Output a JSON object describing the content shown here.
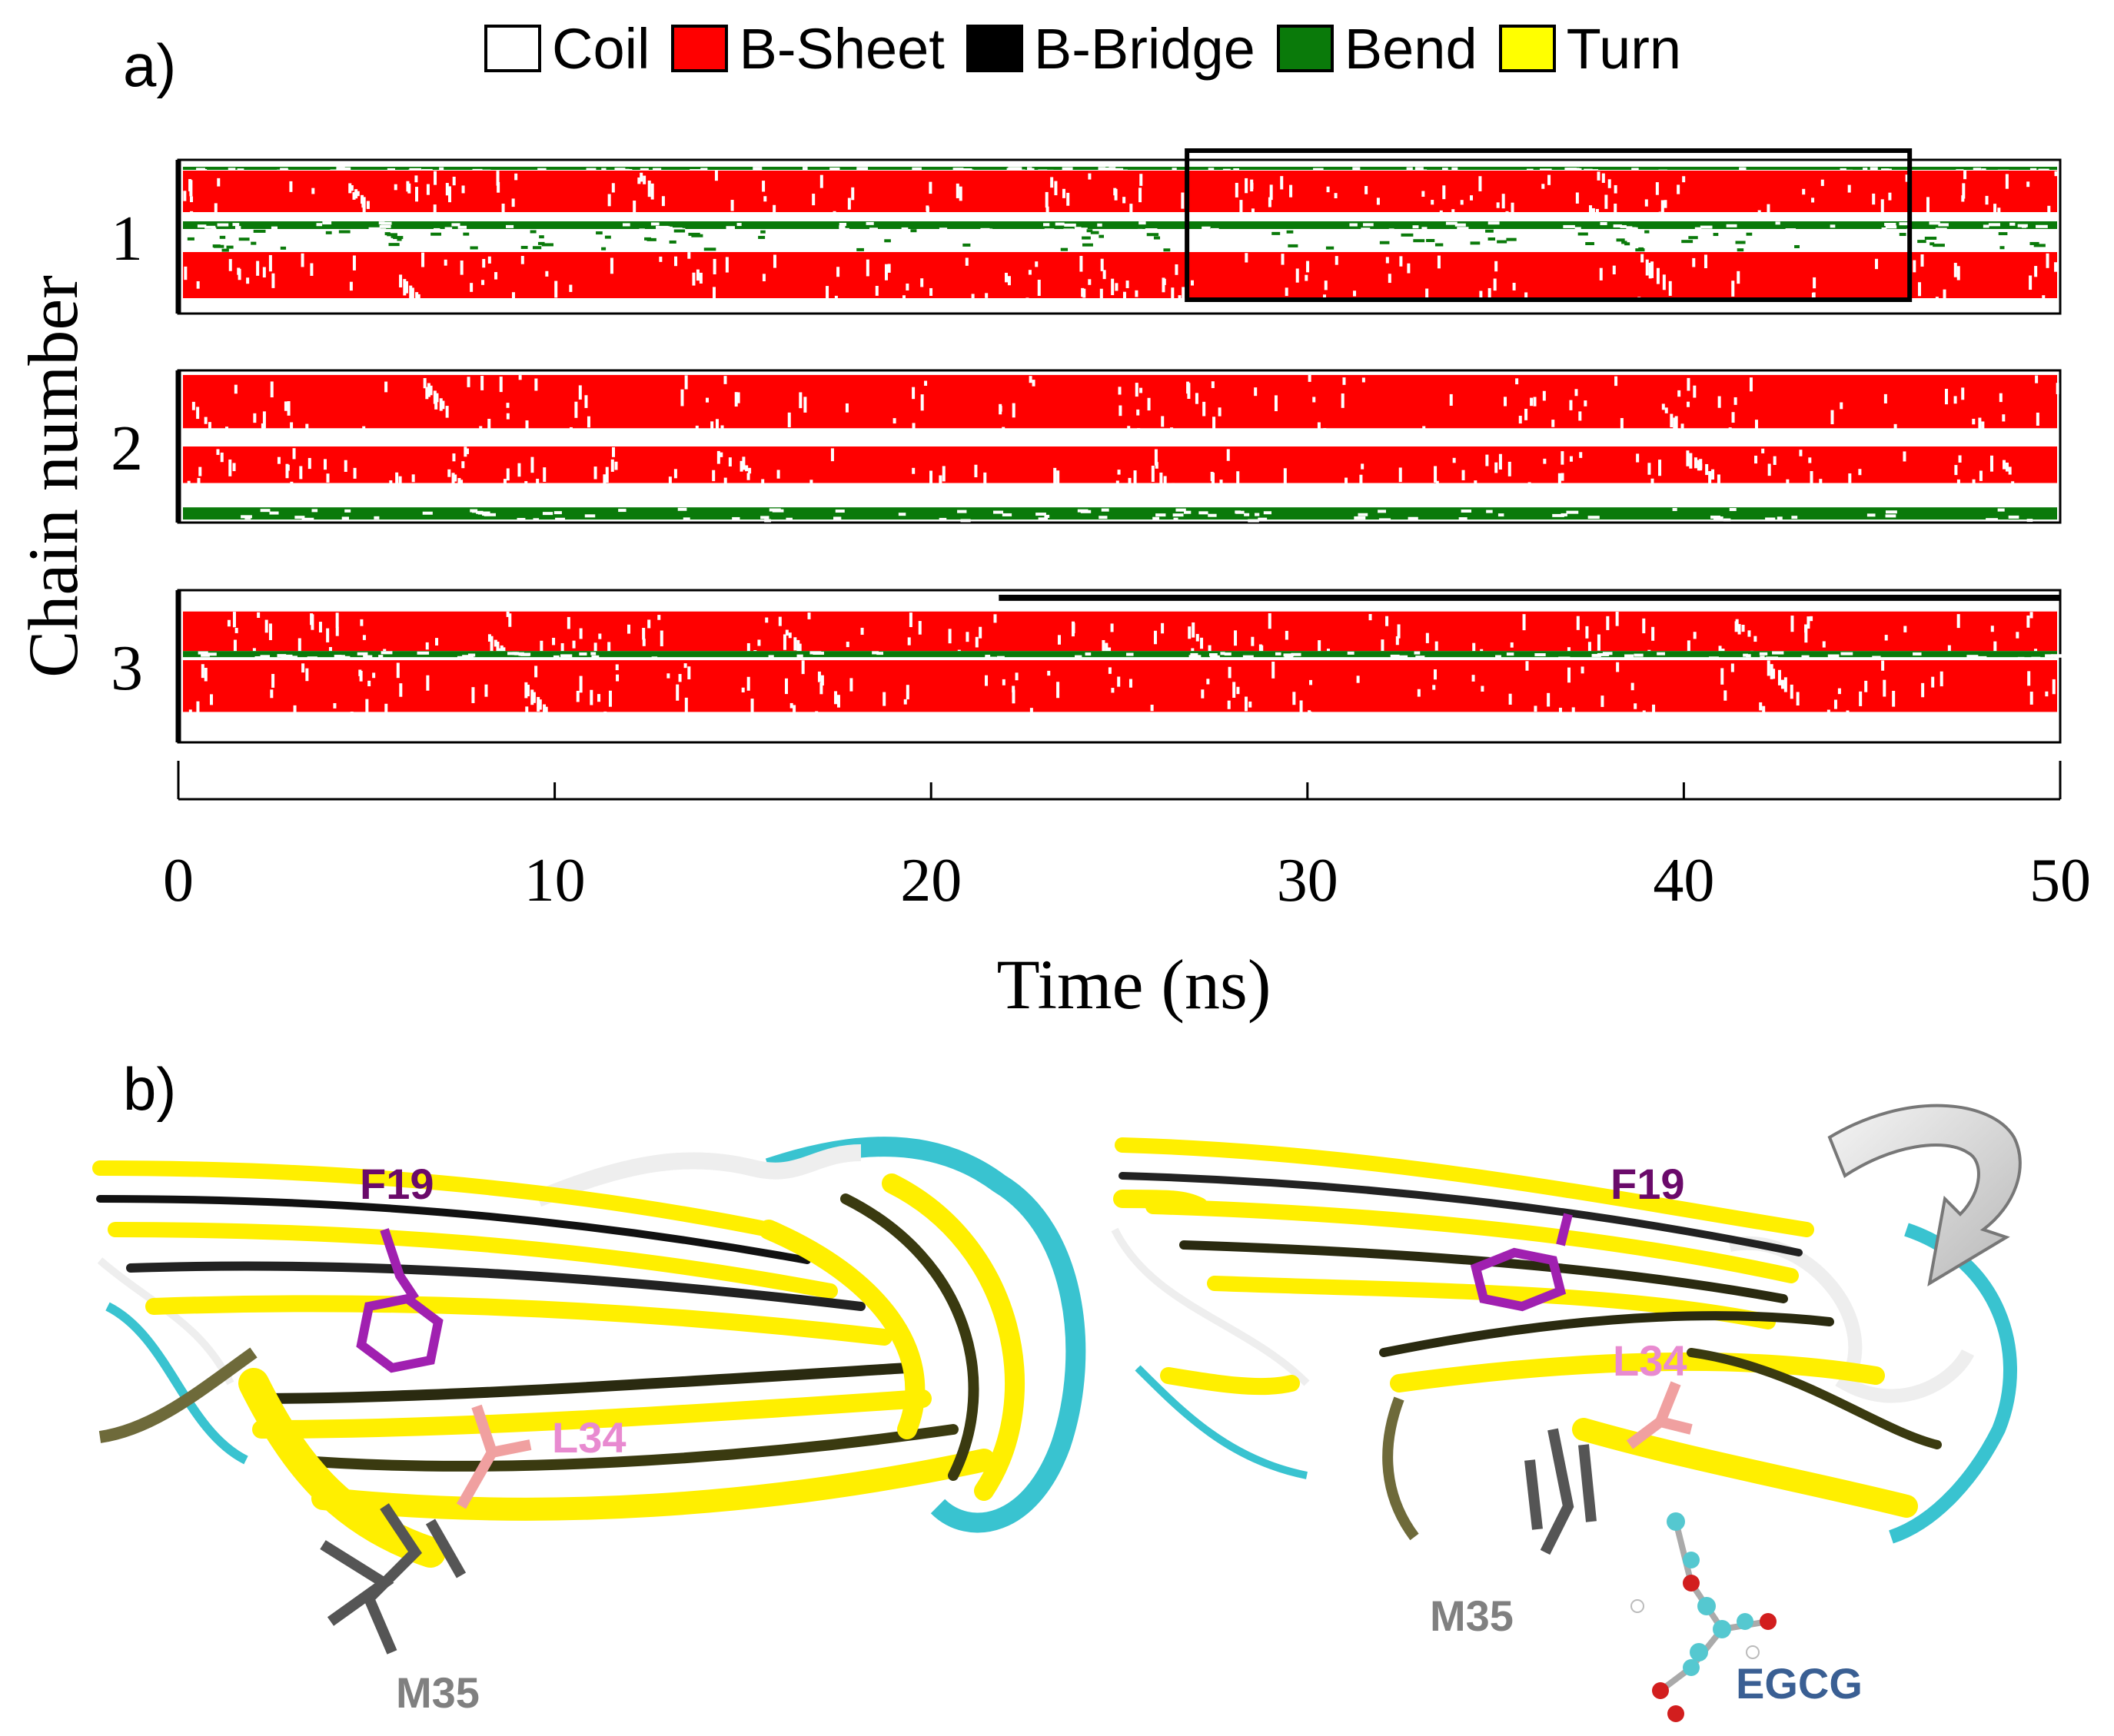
{
  "panel_a": {
    "label": "a)",
    "legend": [
      {
        "label": "Coil",
        "color": "#ffffff"
      },
      {
        "label": "B-Sheet",
        "color": "#ff0000"
      },
      {
        "label": "B-Bridge",
        "color": "#000000"
      },
      {
        "label": "Bend",
        "color": "#0a7a0a"
      },
      {
        "label": "Turn",
        "color": "#ffff00"
      }
    ]
  },
  "panel_b": {
    "label": "b)",
    "left_labels": [
      "F19",
      "L34",
      "M35"
    ],
    "right_labels": [
      "F19",
      "L34",
      "M35",
      "EGCG"
    ],
    "label_colors": {
      "F19": "#6a0a6a",
      "L34": "#e88ad0",
      "M35": "#808080",
      "EGCG": "#3a5f93"
    },
    "ribbon_colors": {
      "sheet": "#ffef00",
      "coil": "#f2f2f2",
      "turn": "#39c3d0",
      "bend": "#6e6a3a"
    }
  },
  "chart_data": {
    "type": "heatmap",
    "xlabel": "Time (ns)",
    "ylabel": "Chain number",
    "xlim": [
      0,
      50
    ],
    "xticks": [
      0,
      10,
      20,
      30,
      40,
      50
    ],
    "chains": [
      {
        "label": "1",
        "bands": [
          {
            "state": "Bend",
            "range": [
              0.955,
              0.935
            ]
          },
          {
            "state": "B-Sheet",
            "range": [
              0.93,
              0.66
            ]
          },
          {
            "state": "Bend",
            "range": [
              0.6,
              0.55
            ]
          },
          {
            "state": "Coil",
            "range": [
              0.55,
              0.42
            ]
          },
          {
            "state": "B-Sheet",
            "range": [
              0.4,
              0.1
            ]
          }
        ],
        "highlight_box": {
          "x": [
            26.8,
            46.0
          ]
        }
      },
      {
        "label": "2",
        "bands": [
          {
            "state": "B-Sheet",
            "range": [
              0.97,
              0.62
            ]
          },
          {
            "state": "B-Sheet",
            "range": [
              0.5,
              0.26
            ]
          },
          {
            "state": "Bend",
            "range": [
              0.1,
              0.02
            ]
          }
        ]
      },
      {
        "label": "3",
        "bands": [
          {
            "state": "B-Bridge",
            "range": [
              0.97,
              0.93
            ],
            "x": [
              21.8,
              50
            ]
          },
          {
            "state": "B-Sheet",
            "range": [
              0.86,
              0.6
            ]
          },
          {
            "state": "Bend",
            "range": [
              0.6,
              0.56
            ]
          },
          {
            "state": "B-Sheet",
            "range": [
              0.54,
              0.2
            ]
          }
        ]
      }
    ]
  }
}
